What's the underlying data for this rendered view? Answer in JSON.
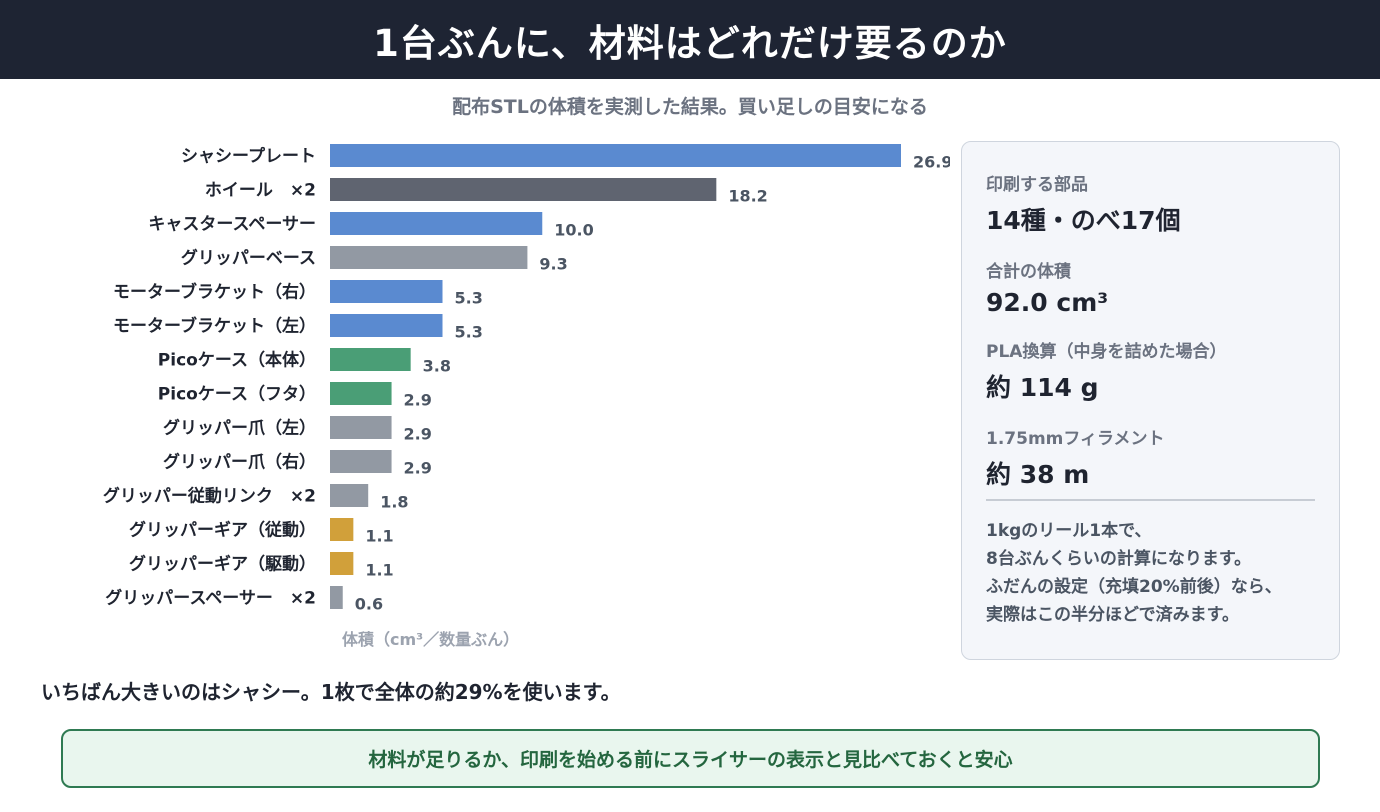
{
  "header": {
    "title": "1台ぶんに、材料はどれだけ要るのか"
  },
  "subtitle": "配布STLの体積を実測した結果。買い足しの目安になる",
  "colors": {
    "blue": "#5a8ad0",
    "dark": "#5f6470",
    "gray": "#9299a3",
    "green": "#4a9e76",
    "gold": "#d1a03a"
  },
  "chart_data": {
    "type": "bar",
    "orientation": "horizontal",
    "xlabel": "体積（cm³／数量ぶん）",
    "xlim": [
      0,
      26.9
    ],
    "grid": false,
    "categories": [
      "シャシープレート",
      "ホイール　×2",
      "キャスタースペーサー",
      "グリッパーベース",
      "モーターブラケット（右）",
      "モーターブラケット（左）",
      "Picoケース（本体）",
      "Picoケース（フタ）",
      "グリッパー爪（左）",
      "グリッパー爪（右）",
      "グリッパー従動リンク　×2",
      "グリッパーギア（従動）",
      "グリッパーギア（駆動）",
      "グリッパースペーサー　×2"
    ],
    "values": [
      26.9,
      18.2,
      10.0,
      9.3,
      5.3,
      5.3,
      3.8,
      2.9,
      2.9,
      2.9,
      1.8,
      1.1,
      1.1,
      0.6
    ],
    "value_labels": [
      "26.9",
      "18.2",
      "10.0",
      "9.3",
      "5.3",
      "5.3",
      "3.8",
      "2.9",
      "2.9",
      "2.9",
      "1.8",
      "1.1",
      "1.1",
      "0.6"
    ],
    "bar_colors": [
      "#5a8ad0",
      "#5f6470",
      "#5a8ad0",
      "#9299a3",
      "#5a8ad0",
      "#5a8ad0",
      "#4a9e76",
      "#4a9e76",
      "#9299a3",
      "#9299a3",
      "#9299a3",
      "#d1a03a",
      "#d1a03a",
      "#9299a3"
    ]
  },
  "panel": {
    "parts_label": "印刷する部品",
    "parts_value": "14種・のべ17個",
    "volume_label": "合計の体積",
    "volume_value": "92.0 cm³",
    "pla_label": "PLA換算（中身を詰めた場合）",
    "pla_value": "約 114 g",
    "filament_label": "1.75mmフィラメント",
    "filament_value": "約 38 m",
    "note_lines": [
      "1kgのリール1本で、",
      "8台ぶんくらいの計算になります。",
      "ふだんの設定（充填20%前後）なら、",
      "実際はこの半分ほどで済みます。"
    ]
  },
  "summary": "いちばん大きいのはシャシー。1枚で全体の約29%を使います。",
  "callout": "材料が足りるか、印刷を始める前にスライサーの表示と見比べておくと安心"
}
